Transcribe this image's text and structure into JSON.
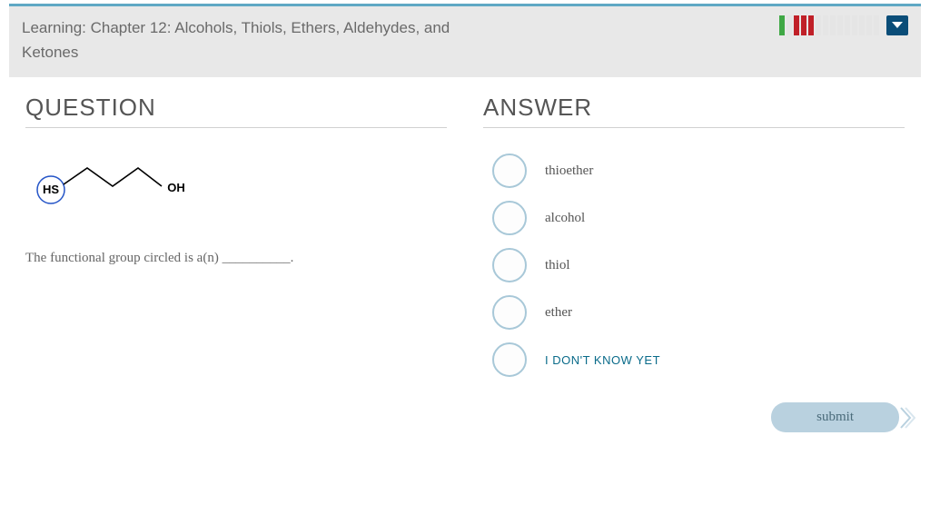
{
  "header": {
    "title": "Learning: Chapter 12: Alcohols, Thiols, Ethers, Aldehydes, and Ketones"
  },
  "progress": {
    "segments": [
      {
        "color": "#3fa845"
      },
      {
        "color": "#e5e5e5"
      },
      {
        "color": "#c02028"
      },
      {
        "color": "#c02028"
      },
      {
        "color": "#c02028"
      },
      {
        "color": "#e5e5e5"
      },
      {
        "color": "#e5e5e5"
      },
      {
        "color": "#e5e5e5"
      },
      {
        "color": "#e5e5e5"
      },
      {
        "color": "#e5e5e5"
      },
      {
        "color": "#e5e5e5"
      },
      {
        "color": "#e5e5e5"
      },
      {
        "color": "#e5e5e5"
      },
      {
        "color": "#e5e5e5"
      }
    ],
    "dropdown_color": "#0a4d78"
  },
  "question": {
    "heading": "QUESTION",
    "text": "The functional group circled is a(n) __________.",
    "molecule": {
      "hs_label": "HS",
      "oh_label": "OH",
      "circle_color": "#2454c7",
      "bond_color": "#000000"
    }
  },
  "answer": {
    "heading": "ANSWER",
    "options": [
      {
        "label": "thioether",
        "idk": false
      },
      {
        "label": "alcohol",
        "idk": false
      },
      {
        "label": "thiol",
        "idk": false
      },
      {
        "label": "ether",
        "idk": false
      },
      {
        "label": "I DON'T KNOW YET",
        "idk": true
      }
    ],
    "radio_border": "#a8c8d8"
  },
  "submit": {
    "label": "submit",
    "bg": "#b9d1df",
    "chevron_color": "#b9d1df"
  }
}
